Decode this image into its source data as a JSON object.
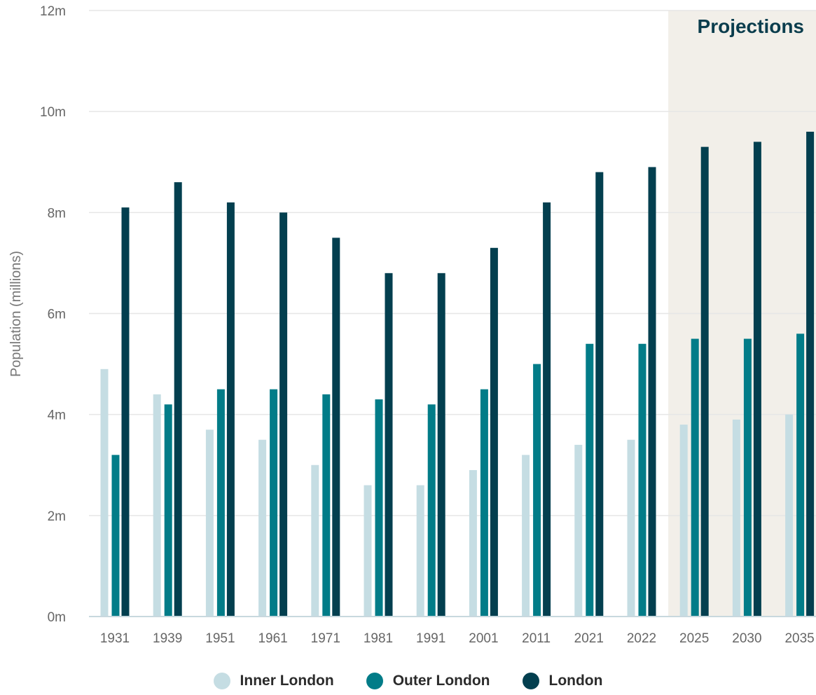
{
  "chart_data": {
    "type": "bar",
    "categories": [
      "1931",
      "1939",
      "1951",
      "1961",
      "1971",
      "1981",
      "1991",
      "2001",
      "2011",
      "2021",
      "2022",
      "2025",
      "2030",
      "2035"
    ],
    "series": [
      {
        "name": "Inner London",
        "color": "#c5dde3",
        "values": [
          4.9,
          4.4,
          3.7,
          3.5,
          3.0,
          2.6,
          2.6,
          2.9,
          3.2,
          3.4,
          3.5,
          3.8,
          3.9,
          4.0
        ]
      },
      {
        "name": "Outer London",
        "color": "#027c88",
        "values": [
          3.2,
          4.2,
          4.5,
          4.5,
          4.4,
          4.3,
          4.2,
          4.5,
          5.0,
          5.4,
          5.4,
          5.5,
          5.5,
          5.6
        ]
      },
      {
        "name": "London",
        "color": "#033f4f",
        "values": [
          8.1,
          8.6,
          8.2,
          8.0,
          7.5,
          6.8,
          6.8,
          7.3,
          8.2,
          8.8,
          8.9,
          9.3,
          9.4,
          9.6
        ]
      }
    ],
    "yticks": [
      0,
      2,
      4,
      6,
      8,
      10,
      12
    ],
    "ytick_labels": [
      "0m",
      "2m",
      "4m",
      "6m",
      "8m",
      "10m",
      "12m"
    ],
    "ylim": [
      0,
      12
    ],
    "ylabel": "Population (millions)",
    "xlabel": "",
    "projection_label": "Projections",
    "projection_start": "2025",
    "grid": true,
    "legend_position": "bottom",
    "colors": {
      "projection_band": "#f2efe9",
      "grid": "#e6e6e6",
      "axis": "#c8d8de"
    }
  }
}
